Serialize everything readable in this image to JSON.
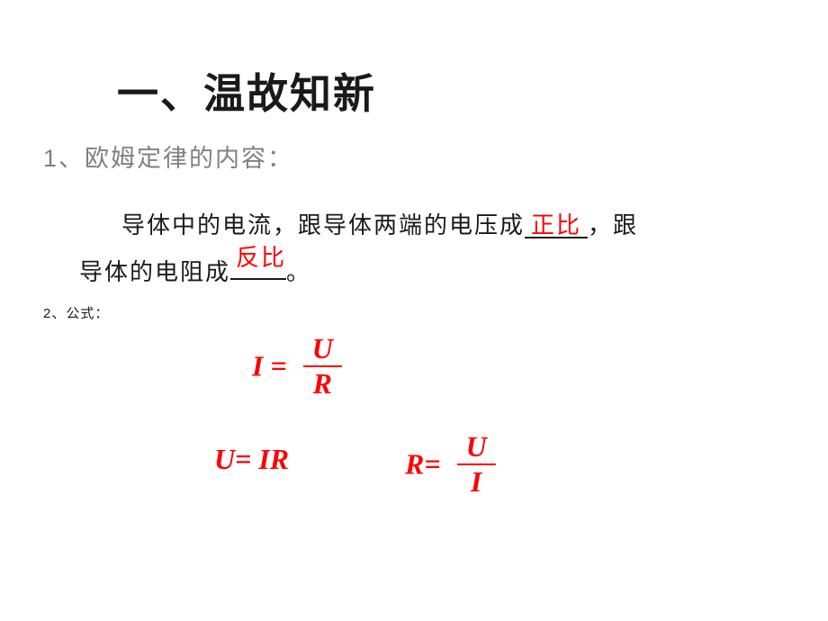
{
  "title": "一、温故知新",
  "q1": "1、欧姆定律的内容：",
  "sentence": {
    "part1": "导体中的电流，跟导体两端的电压成",
    "blank1": "正比",
    "part2": "，跟",
    "part3": "导体的电阻成",
    "blank2": "反比",
    "part4": "。"
  },
  "q2": "2、公式：",
  "formulas": {
    "f1_left": "I =",
    "f1_num": "U",
    "f1_den": "R",
    "f2": "U= IR",
    "f3_left": "R=",
    "f3_num": "U",
    "f3_den": "I"
  },
  "colors": {
    "text": "#1a1a1a",
    "gray": "#808080",
    "red": "#ff0000",
    "background": "#ffffff"
  }
}
